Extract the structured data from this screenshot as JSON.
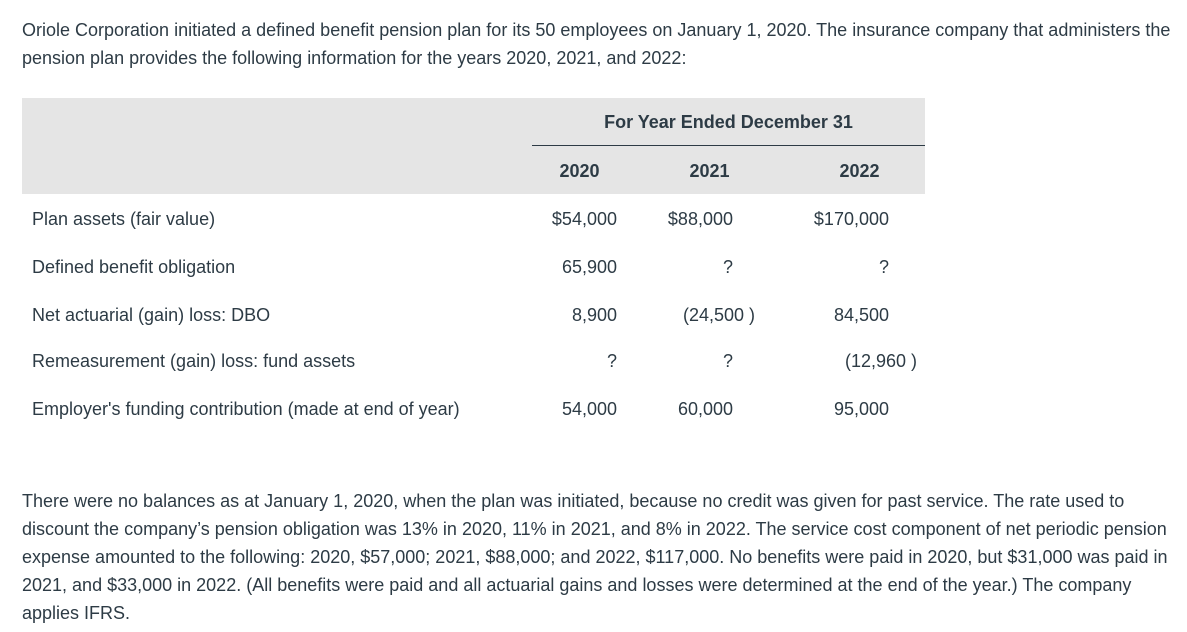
{
  "intro_text": "Oriole Corporation initiated a defined benefit pension plan for its 50 employees on January 1, 2020. The insurance company that administers the pension plan provides the following information for the years 2020, 2021, and 2022:",
  "table": {
    "group_header": "For Year Ended December 31",
    "years": [
      "2020",
      "2021",
      "2022"
    ],
    "rows": [
      {
        "label": "Plan assets (fair value)",
        "values": [
          "$54,000",
          "$88,000",
          "$170,000"
        ]
      },
      {
        "label": "Defined benefit obligation",
        "values": [
          "65,900",
          "?",
          "?"
        ]
      },
      {
        "label": "Net actuarial (gain) loss: DBO",
        "values": [
          "8,900",
          "(24,500 )",
          "84,500"
        ]
      },
      {
        "label": "Remeasurement (gain) loss: fund assets",
        "values": [
          "?",
          "?",
          "(12,960 )"
        ]
      },
      {
        "label": "Employer's funding contribution (made at end of year)",
        "values": [
          "54,000",
          "60,000",
          "95,000"
        ]
      }
    ]
  },
  "outro_text": "There were no balances as at January 1, 2020, when the plan was initiated, because no credit was given for past service. The rate used to discount the company’s pension obligation was 13% in 2020, 11% in 2021, and 8% in 2022. The service cost component of net periodic pension expense amounted to the following: 2020, $57,000; 2021, $88,000; and 2022, $117,000. No benefits were paid in 2020, but $31,000 was paid in 2021, and $33,000 in 2022. (All benefits were paid and all actuarial gains and losses were determined at the end of the year.) The company applies IFRS."
}
